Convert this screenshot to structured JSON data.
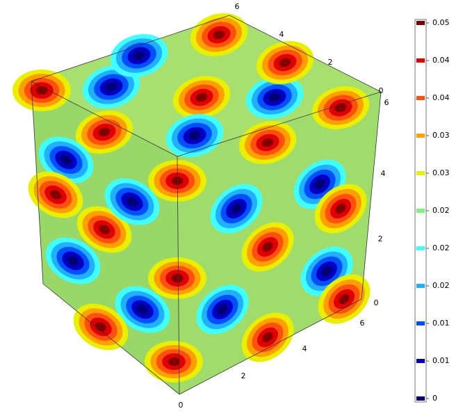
{
  "colorbar": {
    "labels": [
      "0.05",
      "0.04",
      "0.04",
      "0.03",
      "0.03",
      "0.02",
      "0.02",
      "0.02",
      "0.01",
      "0.01",
      "0"
    ],
    "colors": [
      "#800000",
      "#e00000",
      "#ff5010",
      "#ffa000",
      "#e8f000",
      "#80f080",
      "#40ffff",
      "#20b0ff",
      "#0050ff",
      "#0000c0",
      "#000070"
    ]
  },
  "axes": {
    "bottom": [
      "0",
      "2",
      "4",
      "6"
    ],
    "right": [
      "0",
      "2",
      "4",
      "6"
    ],
    "top": [
      "0",
      "2",
      "4",
      "6"
    ]
  }
}
